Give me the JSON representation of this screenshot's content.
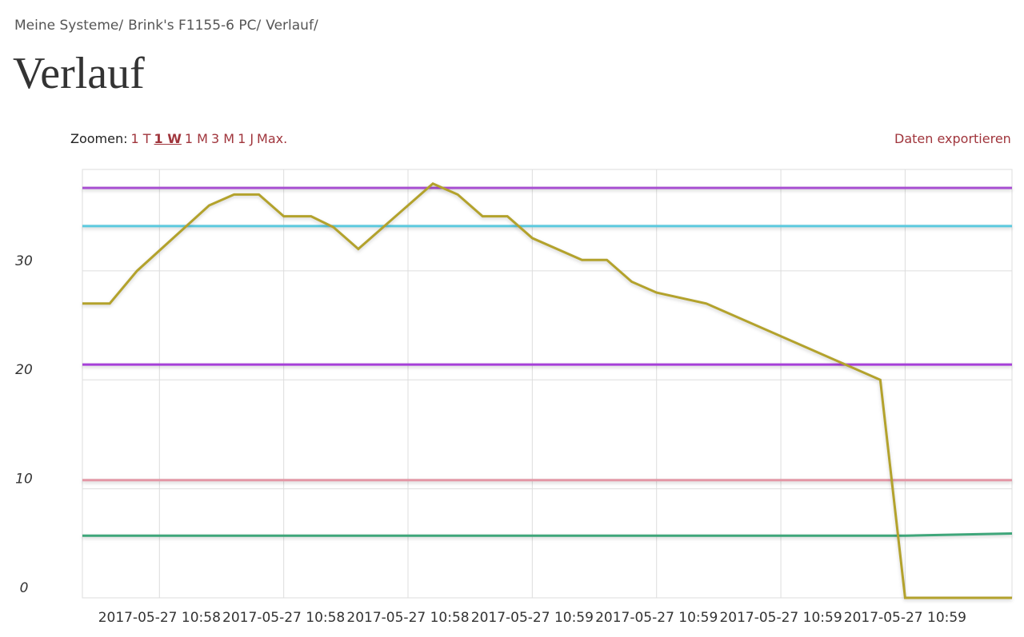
{
  "breadcrumb": {
    "items": [
      "Meine Systeme",
      "Brink's F1155-6 PC",
      "Verlauf"
    ],
    "separator": "/"
  },
  "heading": "Verlauf",
  "toolbar": {
    "zoom_label": "Zoomen:",
    "zoom_options": [
      "1 T",
      "1 W",
      "1 M",
      "3 M",
      "1 J",
      "Max."
    ],
    "active": 1,
    "export": "Daten exportieren"
  },
  "chart_data": {
    "type": "line",
    "xlim": [
      0,
      37.4
    ],
    "xticks": [
      {
        "value": 3.1,
        "label": "2017-05-27 10:58"
      },
      {
        "value": 8.1,
        "label": "2017-05-27 10:58"
      },
      {
        "value": 13.1,
        "label": "2017-05-27 10:58"
      },
      {
        "value": 18.1,
        "label": "2017-05-27 10:59"
      },
      {
        "value": 23.1,
        "label": "2017-05-27 10:59"
      },
      {
        "value": 28.1,
        "label": "2017-05-27 10:59"
      },
      {
        "value": 33.1,
        "label": "2017-05-27 10:59"
      }
    ],
    "ylim": [
      0,
      39.3
    ],
    "yticks": [
      0,
      10,
      20,
      30
    ],
    "grid": true,
    "series": [
      {
        "color": "#a84fd2",
        "x": [
          0,
          37.4
        ],
        "values": [
          37.6,
          37.6
        ]
      },
      {
        "color": "#5cc9de",
        "x": [
          0,
          37.4
        ],
        "values": [
          34.1,
          34.1
        ]
      },
      {
        "color": "#a640d8",
        "x": [
          0,
          37.4
        ],
        "values": [
          21.4,
          21.4
        ]
      },
      {
        "color": "#e397a6",
        "x": [
          0,
          37.4
        ],
        "values": [
          10.8,
          10.8
        ]
      },
      {
        "color": "#3ea67a",
        "x": [
          0,
          33.1,
          37.4
        ],
        "values": [
          5.7,
          5.7,
          5.9
        ]
      },
      {
        "color": "#b3a22c",
        "x": [
          0,
          1.1,
          2.2,
          5.1,
          6.1,
          7.1,
          8.1,
          9.2,
          10.1,
          11.1,
          12.1,
          14.1,
          15.1,
          16.1,
          17.1,
          18.1,
          20.1,
          21.1,
          22.1,
          23.1,
          25.1,
          32.1,
          33.1,
          37.4
        ],
        "values": [
          27,
          27,
          30,
          36,
          37,
          37,
          35,
          35,
          34,
          32,
          34,
          38,
          37,
          35,
          35,
          33,
          31,
          31,
          29,
          28,
          27,
          20,
          0,
          0
        ]
      }
    ]
  }
}
